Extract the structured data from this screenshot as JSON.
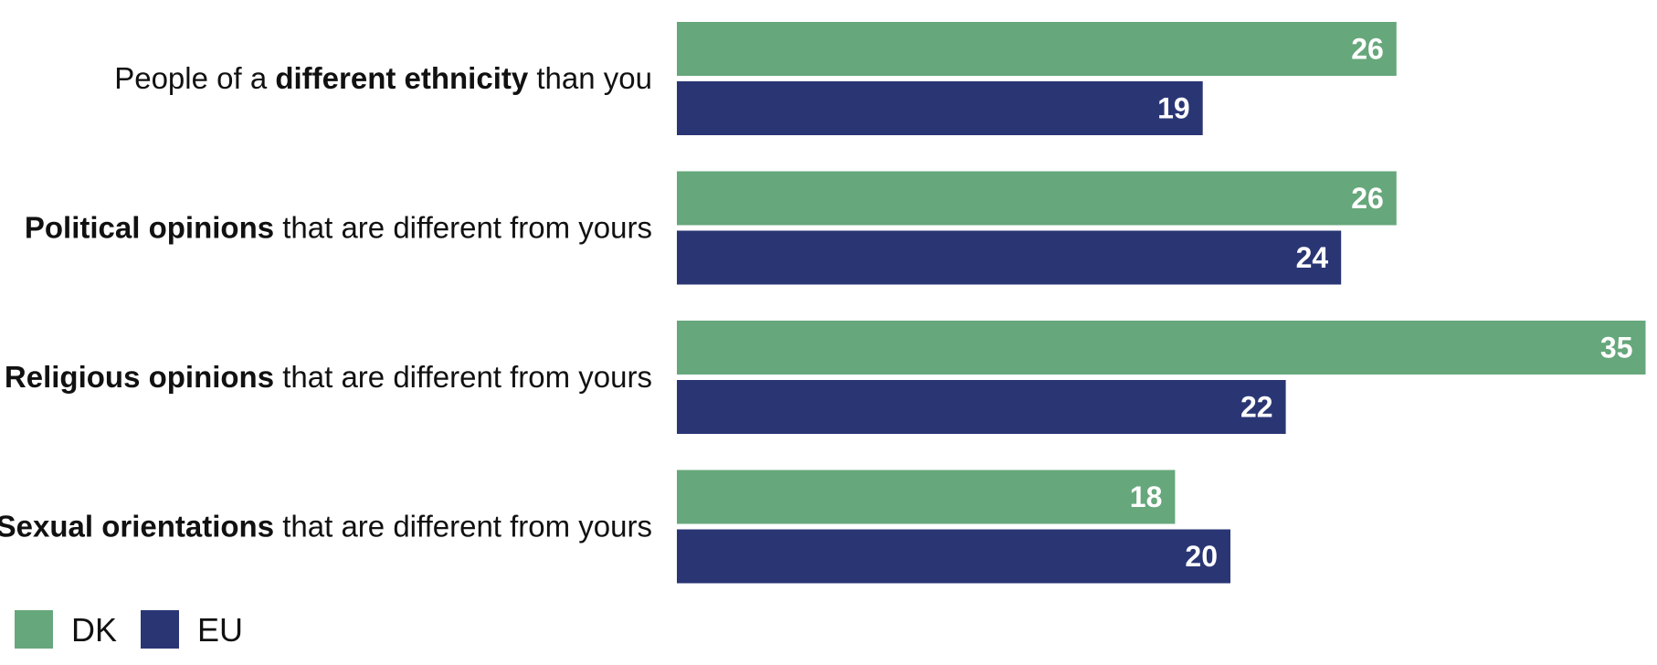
{
  "chart_data": {
    "type": "bar",
    "orientation": "horizontal",
    "title": "",
    "xlabel": "",
    "ylabel": "",
    "grid": false,
    "legend_position": "bottom-left",
    "xlim": [
      0,
      35
    ],
    "categories": [
      {
        "plain_before": "People of a ",
        "bold": "different ethnicity",
        "plain_after": " than you"
      },
      {
        "plain_before": "",
        "bold": "Political opinions",
        "plain_after": " that are different from yours"
      },
      {
        "plain_before": "",
        "bold": "Religious opinions",
        "plain_after": " that are different from yours"
      },
      {
        "plain_before": "",
        "bold": "Sexual orientations",
        "plain_after": " that are different from yours"
      }
    ],
    "series": [
      {
        "name": "DK",
        "color": "#66a77b",
        "values": [
          26,
          26,
          35,
          18
        ]
      },
      {
        "name": "EU",
        "color": "#2a3674",
        "values": [
          19,
          24,
          22,
          20
        ]
      }
    ]
  }
}
